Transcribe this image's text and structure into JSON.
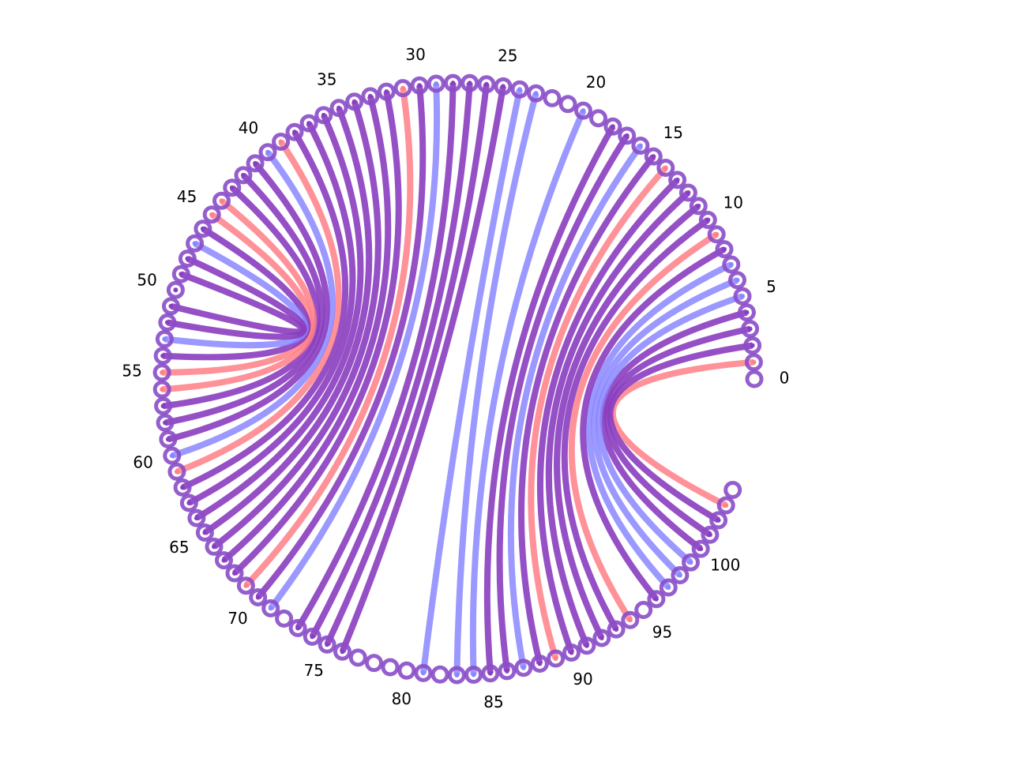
{
  "diagram": {
    "type": "arc-diagram",
    "node_count": 105,
    "labels": [
      "0",
      "5",
      "10",
      "15",
      "20",
      "25",
      "30",
      "35",
      "40",
      "45",
      "50",
      "55",
      "60",
      "65",
      "70",
      "75",
      "80",
      "85",
      "90",
      "95",
      "100"
    ],
    "label_indices": [
      0,
      5,
      10,
      15,
      20,
      25,
      30,
      35,
      40,
      45,
      50,
      55,
      60,
      65,
      70,
      75,
      80,
      85,
      90,
      95,
      100
    ],
    "colors": {
      "red": "#ff7f86",
      "blue": "#8a86ff",
      "purple": "#8a3dbf",
      "node_ring": "#8a4cc8",
      "node_fill": "#ffffff"
    },
    "connections": [
      {
        "a": 1,
        "b": 103,
        "color": "red"
      },
      {
        "a": 2,
        "b": 102,
        "color": "purple"
      },
      {
        "a": 3,
        "b": 101,
        "color": "purple"
      },
      {
        "a": 4,
        "b": 100,
        "color": "purple"
      },
      {
        "a": 5,
        "b": 99,
        "color": "blue"
      },
      {
        "a": 6,
        "b": 98,
        "color": "blue"
      },
      {
        "a": 7,
        "b": 97,
        "color": "blue"
      },
      {
        "a": 8,
        "b": 96,
        "color": "purple"
      },
      {
        "a": 9,
        "b": 94,
        "color": "red"
      },
      {
        "a": 10,
        "b": 93,
        "color": "purple"
      },
      {
        "a": 11,
        "b": 92,
        "color": "purple"
      },
      {
        "a": 12,
        "b": 91,
        "color": "purple"
      },
      {
        "a": 13,
        "b": 90,
        "color": "purple"
      },
      {
        "a": 14,
        "b": 89,
        "color": "red"
      },
      {
        "a": 15,
        "b": 88,
        "color": "purple"
      },
      {
        "a": 16,
        "b": 87,
        "color": "blue"
      },
      {
        "a": 17,
        "b": 86,
        "color": "purple"
      },
      {
        "a": 18,
        "b": 85,
        "color": "purple"
      },
      {
        "a": 20,
        "b": 84,
        "color": "blue"
      },
      {
        "a": 23,
        "b": 83,
        "color": "blue"
      },
      {
        "a": 24,
        "b": 81,
        "color": "blue"
      },
      {
        "a": 25,
        "b": 76,
        "color": "purple"
      },
      {
        "a": 26,
        "b": 75,
        "color": "purple"
      },
      {
        "a": 27,
        "b": 74,
        "color": "purple"
      },
      {
        "a": 28,
        "b": 73,
        "color": "purple"
      },
      {
        "a": 29,
        "b": 71,
        "color": "blue"
      },
      {
        "a": 30,
        "b": 70,
        "color": "purple"
      },
      {
        "a": 31,
        "b": 69,
        "color": "red"
      },
      {
        "a": 32,
        "b": 68,
        "color": "purple"
      },
      {
        "a": 33,
        "b": 67,
        "color": "purple"
      },
      {
        "a": 34,
        "b": 66,
        "color": "purple"
      },
      {
        "a": 35,
        "b": 65,
        "color": "purple"
      },
      {
        "a": 36,
        "b": 64,
        "color": "purple"
      },
      {
        "a": 37,
        "b": 63,
        "color": "purple"
      },
      {
        "a": 38,
        "b": 62,
        "color": "purple"
      },
      {
        "a": 39,
        "b": 61,
        "color": "red"
      },
      {
        "a": 40,
        "b": 60,
        "color": "blue"
      },
      {
        "a": 41,
        "b": 59,
        "color": "purple"
      },
      {
        "a": 42,
        "b": 58,
        "color": "purple"
      },
      {
        "a": 43,
        "b": 57,
        "color": "purple"
      },
      {
        "a": 44,
        "b": 56,
        "color": "red"
      },
      {
        "a": 45,
        "b": 55,
        "color": "red"
      },
      {
        "a": 46,
        "b": 54,
        "color": "purple"
      },
      {
        "a": 47,
        "b": 53,
        "color": "blue"
      },
      {
        "a": 48,
        "b": 52,
        "color": "purple"
      },
      {
        "a": 49,
        "b": 51,
        "color": "purple"
      },
      {
        "a": 50,
        "b": 50,
        "color": "purple"
      }
    ]
  }
}
